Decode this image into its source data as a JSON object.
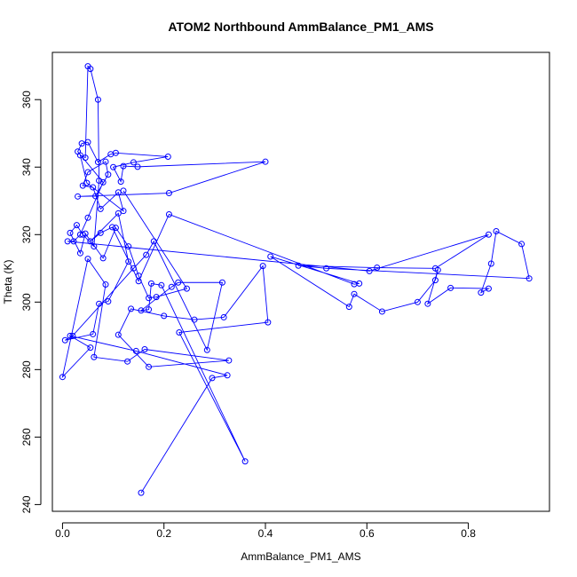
{
  "chart_data": {
    "type": "line",
    "title": "ATOM2 Northbound AmmBalance_PM1_AMS",
    "xlabel": "AmmBalance_PM1_AMS",
    "ylabel": "Theta (K)",
    "xlim": [
      -0.02,
      0.96
    ],
    "ylim": [
      238,
      374
    ],
    "xticks": [
      0.0,
      0.2,
      0.4,
      0.6,
      0.8
    ],
    "xtick_labels": [
      "0.0",
      "0.2",
      "0.4",
      "0.6",
      "0.8"
    ],
    "yticks": [
      240,
      260,
      280,
      300,
      320,
      340,
      360
    ],
    "yticks_labels": [
      "240",
      "260",
      "280",
      "300",
      "320",
      "340",
      "360"
    ],
    "grid": false,
    "color": "#0000ff",
    "series": [
      {
        "points": [
          [
            0.155,
            243.5
          ],
          [
            0.295,
            277.5
          ],
          [
            0.325,
            278.3
          ],
          [
            0.145,
            285.5
          ],
          [
            0.015,
            290.0
          ],
          [
            0.055,
            286.5
          ],
          [
            0.0,
            277.8
          ],
          [
            0.05,
            312.8
          ],
          [
            0.085,
            305.2
          ],
          [
            0.062,
            283.7
          ],
          [
            0.128,
            282.4
          ],
          [
            0.162,
            286.0
          ],
          [
            0.328,
            282.7
          ],
          [
            0.17,
            280.8
          ],
          [
            0.11,
            290.3
          ],
          [
            0.135,
            298.0
          ],
          [
            0.2,
            295.9
          ],
          [
            0.26,
            294.8
          ],
          [
            0.318,
            295.5
          ],
          [
            0.395,
            310.7
          ],
          [
            0.405,
            294.0
          ],
          [
            0.23,
            291.0
          ],
          [
            0.36,
            252.8
          ],
          [
            0.195,
            305.0
          ],
          [
            0.175,
            305.5
          ],
          [
            0.17,
            297.8
          ],
          [
            0.155,
            297.5
          ],
          [
            0.215,
            304.5
          ],
          [
            0.228,
            305.8
          ],
          [
            0.315,
            305.8
          ],
          [
            0.285,
            285.8
          ],
          [
            0.18,
            318.0
          ],
          [
            0.165,
            314.0
          ],
          [
            0.14,
            310.0
          ],
          [
            0.02,
            290.0
          ],
          [
            0.005,
            288.7
          ],
          [
            0.06,
            290.5
          ],
          [
            0.072,
            299.5
          ],
          [
            0.09,
            300.2
          ],
          [
            0.13,
            312.0
          ],
          [
            0.11,
            326.3
          ],
          [
            0.055,
            318.0
          ],
          [
            0.075,
            320.5
          ],
          [
            0.098,
            322.2
          ],
          [
            0.15,
            306.2
          ],
          [
            0.21,
            326.0
          ],
          [
            0.575,
            305.3
          ],
          [
            0.585,
            305.5
          ],
          [
            0.41,
            313.5
          ],
          [
            0.565,
            298.6
          ],
          [
            0.575,
            302.4
          ],
          [
            0.63,
            297.2
          ],
          [
            0.7,
            300.0
          ],
          [
            0.735,
            306.5
          ],
          [
            0.74,
            309.5
          ],
          [
            0.72,
            299.5
          ],
          [
            0.765,
            304.2
          ],
          [
            0.84,
            304.0
          ],
          [
            0.825,
            302.8
          ],
          [
            0.845,
            311.4
          ],
          [
            0.855,
            321.0
          ],
          [
            0.905,
            317.2
          ],
          [
            0.92,
            307.0
          ],
          [
            0.52,
            310.0
          ],
          [
            0.465,
            310.8
          ],
          [
            0.62,
            310.2
          ],
          [
            0.735,
            310.0
          ],
          [
            0.84,
            320.0
          ],
          [
            0.605,
            309.2
          ],
          [
            0.01,
            318.0
          ],
          [
            0.022,
            318.0
          ],
          [
            0.035,
            320.0
          ],
          [
            0.05,
            325.0
          ],
          [
            0.08,
            335.5
          ],
          [
            0.03,
            344.6
          ],
          [
            0.038,
            347.0
          ],
          [
            0.05,
            347.4
          ],
          [
            0.07,
            341.5
          ],
          [
            0.095,
            343.8
          ],
          [
            0.105,
            344.2
          ],
          [
            0.208,
            343.1
          ],
          [
            0.14,
            341.4
          ],
          [
            0.1,
            340.0
          ],
          [
            0.115,
            335.7
          ],
          [
            0.12,
            340.3
          ],
          [
            0.148,
            340.1
          ],
          [
            0.4,
            341.6
          ],
          [
            0.21,
            332.3
          ],
          [
            0.03,
            331.3
          ],
          [
            0.065,
            331.4
          ],
          [
            0.09,
            337.8
          ],
          [
            0.085,
            341.6
          ],
          [
            0.05,
            338.5
          ],
          [
            0.04,
            334.5
          ],
          [
            0.06,
            334.0
          ],
          [
            0.075,
            327.6
          ],
          [
            0.11,
            332.5
          ],
          [
            0.12,
            327.0
          ],
          [
            0.048,
            335.3
          ],
          [
            0.035,
            343.5
          ],
          [
            0.045,
            342.8
          ],
          [
            0.05,
            369.9
          ],
          [
            0.055,
            369.1
          ],
          [
            0.07,
            360.0
          ],
          [
            0.072,
            336.0
          ],
          [
            0.062,
            316.5
          ],
          [
            0.04,
            320.0
          ],
          [
            0.028,
            322.8
          ],
          [
            0.015,
            320.5
          ],
          [
            0.035,
            314.5
          ],
          [
            0.045,
            320.3
          ],
          [
            0.08,
            313.0
          ],
          [
            0.105,
            322.0
          ],
          [
            0.13,
            316.5
          ],
          [
            0.15,
            307.8
          ],
          [
            0.17,
            301.2
          ],
          [
            0.185,
            301.5
          ],
          [
            0.245,
            304.0
          ],
          [
            0.12,
            333.0
          ]
        ]
      }
    ]
  }
}
